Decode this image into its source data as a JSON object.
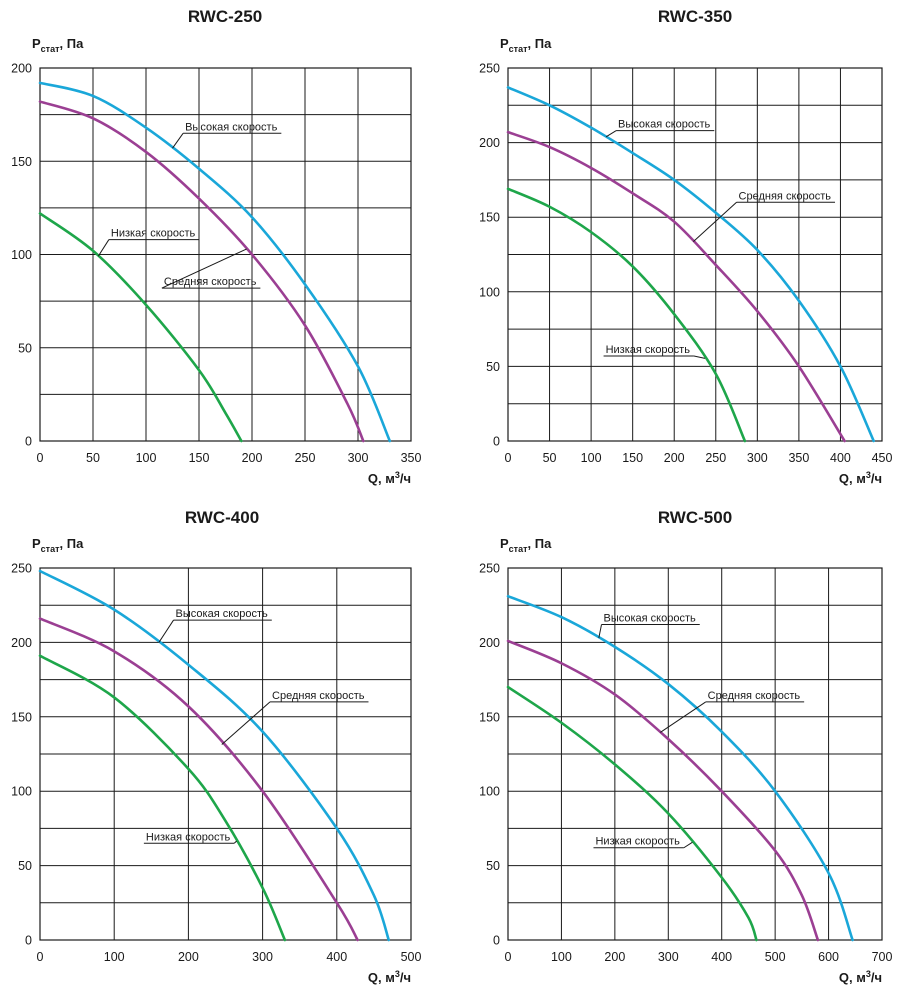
{
  "chart_data": [
    {
      "type": "line",
      "title": "RWC-250",
      "ylabel_main": "P",
      "ylabel_sub": "стат",
      "ylabel_unit": ", Па",
      "xlabel_main": "Q, м",
      "xlabel_sup": "3",
      "xlabel_unit": "/ч",
      "xlim": [
        0,
        350
      ],
      "ylim": [
        0,
        200
      ],
      "x_ticks": [
        "0",
        "50",
        "100",
        "150",
        "200",
        "250",
        "300",
        "350"
      ],
      "y_ticks": [
        "0",
        "50",
        "100",
        "150",
        "200"
      ],
      "grid": true,
      "series": [
        {
          "name": "Высокая скорость",
          "color": "#1aa7d9",
          "x": [
            0,
            50,
            100,
            150,
            200,
            250,
            300,
            330
          ],
          "y": [
            192,
            185,
            168,
            146,
            120,
            84,
            40,
            0
          ]
        },
        {
          "name": "Средняя скорость",
          "color": "#9b3f93",
          "x": [
            0,
            50,
            100,
            150,
            200,
            250,
            290,
            305
          ],
          "y": [
            182,
            173,
            155,
            130,
            100,
            62,
            20,
            0
          ]
        },
        {
          "name": "Низкая скорость",
          "color": "#1ea64a",
          "x": [
            0,
            50,
            100,
            150,
            175,
            190
          ],
          "y": [
            122,
            102,
            73,
            38,
            15,
            0
          ]
        }
      ],
      "annotations": [
        {
          "text": "Высокая скорость",
          "series": 0,
          "at_x": 125,
          "label_x": 135,
          "label_y": 165
        },
        {
          "text": "Низкая скорость",
          "series": 2,
          "at_x": 55,
          "label_x": 65,
          "label_y": 108
        },
        {
          "text": "Средняя скорость",
          "series": 1,
          "at_x": 195,
          "label_x": 115,
          "label_y": 82
        }
      ]
    },
    {
      "type": "line",
      "title": "RWC-350",
      "ylabel_main": "P",
      "ylabel_sub": "стат",
      "ylabel_unit": ", Па",
      "xlabel_main": "Q, м",
      "xlabel_sup": "3",
      "xlabel_unit": "/ч",
      "xlim": [
        0,
        450
      ],
      "ylim": [
        0,
        250
      ],
      "x_ticks": [
        "0",
        "50",
        "100",
        "150",
        "200",
        "250",
        "300",
        "350",
        "400",
        "450"
      ],
      "y_ticks": [
        "0",
        "50",
        "100",
        "150",
        "200",
        "250"
      ],
      "grid": true,
      "series": [
        {
          "name": "Высокая скорость",
          "color": "#1aa7d9",
          "x": [
            0,
            50,
            100,
            150,
            200,
            250,
            300,
            350,
            400,
            440
          ],
          "y": [
            237,
            225,
            210,
            193,
            175,
            153,
            128,
            94,
            50,
            0
          ]
        },
        {
          "name": "Средняя скорость",
          "color": "#9b3f93",
          "x": [
            0,
            50,
            100,
            150,
            200,
            250,
            300,
            350,
            405
          ],
          "y": [
            207,
            197,
            183,
            166,
            147,
            118,
            87,
            50,
            0
          ]
        },
        {
          "name": "Низкая скорость",
          "color": "#1ea64a",
          "x": [
            0,
            50,
            100,
            150,
            200,
            250,
            285
          ],
          "y": [
            169,
            157,
            140,
            117,
            85,
            45,
            0
          ]
        }
      ],
      "annotations": [
        {
          "text": "Высокая скорость",
          "series": 0,
          "at_x": 118,
          "label_x": 130,
          "label_y": 208
        },
        {
          "text": "Средняя скорость",
          "series": 1,
          "at_x": 223,
          "label_x": 275,
          "label_y": 160
        },
        {
          "text": "Низкая скорость",
          "series": 2,
          "at_x": 237,
          "label_x": 115,
          "label_y": 57
        }
      ]
    },
    {
      "type": "line",
      "title": "RWC-400",
      "ylabel_main": "P",
      "ylabel_sub": "стат",
      "ylabel_unit": ", Па",
      "xlabel_main": "Q, м",
      "xlabel_sup": "3",
      "xlabel_unit": "/ч",
      "xlim": [
        0,
        500
      ],
      "ylim": [
        0,
        250
      ],
      "x_ticks": [
        "0",
        "100",
        "200",
        "300",
        "400",
        "500"
      ],
      "y_ticks": [
        "0",
        "50",
        "100",
        "150",
        "200",
        "250"
      ],
      "grid": true,
      "series": [
        {
          "name": "Высокая скорость",
          "color": "#1aa7d9",
          "x": [
            0,
            100,
            200,
            300,
            400,
            450,
            470
          ],
          "y": [
            248,
            222,
            185,
            140,
            75,
            30,
            0
          ]
        },
        {
          "name": "Средняя скорость",
          "color": "#9b3f93",
          "x": [
            0,
            100,
            200,
            300,
            400,
            428
          ],
          "y": [
            216,
            194,
            157,
            100,
            25,
            0
          ]
        },
        {
          "name": "Низкая скорость",
          "color": "#1ea64a",
          "x": [
            0,
            100,
            200,
            250,
            300,
            330
          ],
          "y": [
            191,
            163,
            115,
            80,
            35,
            0
          ]
        }
      ],
      "annotations": [
        {
          "text": "Высокая скорость",
          "series": 0,
          "at_x": 160,
          "label_x": 180,
          "label_y": 215
        },
        {
          "text": "Средняя скорость",
          "series": 1,
          "at_x": 245,
          "label_x": 310,
          "label_y": 160
        },
        {
          "text": "Низкая скорость",
          "series": 2,
          "at_x": 265,
          "label_x": 140,
          "label_y": 65
        }
      ]
    },
    {
      "type": "line",
      "title": "RWC-500",
      "ylabel_main": "P",
      "ylabel_sub": "стат",
      "ylabel_unit": ", Па",
      "xlabel_main": "Q, м",
      "xlabel_sup": "3",
      "xlabel_unit": "/ч",
      "xlim": [
        0,
        700
      ],
      "ylim": [
        0,
        250
      ],
      "x_ticks": [
        "0",
        "100",
        "200",
        "300",
        "400",
        "500",
        "600",
        "700"
      ],
      "y_ticks": [
        "0",
        "50",
        "100",
        "150",
        "200",
        "250"
      ],
      "grid": true,
      "series": [
        {
          "name": "Высокая скорость",
          "color": "#1aa7d9",
          "x": [
            0,
            100,
            200,
            300,
            400,
            500,
            600,
            645
          ],
          "y": [
            231,
            217,
            197,
            172,
            140,
            100,
            45,
            0
          ]
        },
        {
          "name": "Средняя скорость",
          "color": "#9b3f93",
          "x": [
            0,
            100,
            200,
            300,
            400,
            500,
            550,
            580
          ],
          "y": [
            201,
            186,
            165,
            135,
            100,
            60,
            30,
            0
          ]
        },
        {
          "name": "Низкая скорость",
          "color": "#1ea64a",
          "x": [
            0,
            100,
            200,
            300,
            400,
            450,
            465
          ],
          "y": [
            170,
            146,
            118,
            85,
            42,
            15,
            0
          ]
        }
      ],
      "annotations": [
        {
          "text": "Высокая скорость",
          "series": 0,
          "at_x": 170,
          "label_x": 175,
          "label_y": 212
        },
        {
          "text": "Средняя скорость",
          "series": 1,
          "at_x": 285,
          "label_x": 370,
          "label_y": 160
        },
        {
          "text": "Низкая скорость",
          "series": 2,
          "at_x": 345,
          "label_x": 160,
          "label_y": 62
        }
      ]
    }
  ]
}
